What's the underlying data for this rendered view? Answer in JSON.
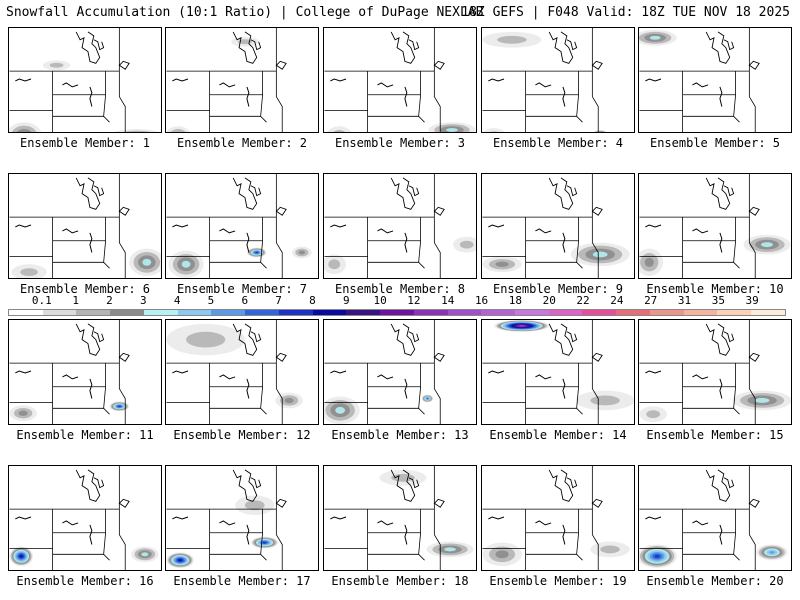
{
  "header": {
    "left": "Snowfall Accumulation (10:1 Ratio) | College of DuPage NEXLAB",
    "right": "18Z GEFS | F048 Valid: 18Z TUE NOV 18 2025"
  },
  "colorbar": {
    "labels": [
      "0.1",
      "1",
      "2",
      "3",
      "4",
      "5",
      "6",
      "7",
      "8",
      "9",
      "10",
      "12",
      "14",
      "16",
      "18",
      "20",
      "22",
      "24",
      "27",
      "31",
      "35",
      "39"
    ],
    "colors": [
      "#ffffff",
      "#dcdcdc",
      "#b4b4b4",
      "#8c8c8c",
      "#b4f0f5",
      "#8cc8f0",
      "#5a9be6",
      "#3264dc",
      "#1e32c8",
      "#0a0aa0",
      "#3c1482",
      "#6e14a0",
      "#8c32b4",
      "#a050c8",
      "#b464d2",
      "#c878dc",
      "#dc64c8",
      "#e6509b",
      "#e66e78",
      "#eb968c",
      "#f5b4a0",
      "#fad2b9",
      "#fcecd8"
    ]
  },
  "panels": [
    {
      "member": "1",
      "caption": "Ensemble Member: 1",
      "snow": [
        {
          "type": "blob",
          "x": 15,
          "y": 110,
          "rx": 18,
          "ry": 14,
          "level": 3
        },
        {
          "type": "blob",
          "x": 130,
          "y": 110,
          "rx": 28,
          "ry": 7,
          "level": 3
        },
        {
          "type": "blob",
          "x": 48,
          "y": 38,
          "rx": 14,
          "ry": 5,
          "level": 0
        }
      ]
    },
    {
      "member": "2",
      "caption": "Ensemble Member: 2",
      "snow": [
        {
          "type": "blob",
          "x": 12,
          "y": 112,
          "rx": 14,
          "ry": 12,
          "level": 3
        },
        {
          "type": "blob",
          "x": 80,
          "y": 14,
          "rx": 14,
          "ry": 5,
          "level": 0
        }
      ]
    },
    {
      "member": "3",
      "caption": "Ensemble Member: 3",
      "snow": [
        {
          "type": "blob",
          "x": 130,
          "y": 104,
          "rx": 24,
          "ry": 8,
          "level": 3
        },
        {
          "type": "blob",
          "x": 15,
          "y": 112,
          "rx": 14,
          "ry": 12,
          "level": 2
        }
      ]
    },
    {
      "member": "4",
      "caption": "Ensemble Member: 4",
      "snow": [
        {
          "type": "blob",
          "x": 30,
          "y": 12,
          "rx": 30,
          "ry": 8,
          "level": 0
        },
        {
          "type": "blob",
          "x": 120,
          "y": 108,
          "rx": 8,
          "ry": 4,
          "level": 6
        },
        {
          "type": "blob",
          "x": 12,
          "y": 112,
          "rx": 14,
          "ry": 10,
          "level": 2
        }
      ]
    },
    {
      "member": "5",
      "caption": "Ensemble Member: 5",
      "snow": [
        {
          "type": "blob",
          "x": 16,
          "y": 10,
          "rx": 22,
          "ry": 8,
          "level": 3
        },
        {
          "type": "blob",
          "x": 14,
          "y": 115,
          "rx": 14,
          "ry": 8,
          "level": 1
        }
      ]
    },
    {
      "member": "6",
      "caption": "Ensemble Member: 6",
      "snow": [
        {
          "type": "blob",
          "x": 140,
          "y": 90,
          "rx": 18,
          "ry": 14,
          "level": 3
        },
        {
          "type": "blob",
          "x": 20,
          "y": 100,
          "rx": 18,
          "ry": 8,
          "level": 1
        }
      ]
    },
    {
      "member": "7",
      "caption": "Ensemble Member: 7",
      "snow": [
        {
          "type": "blob",
          "x": 92,
          "y": 80,
          "rx": 10,
          "ry": 5,
          "level": 7
        },
        {
          "type": "blob",
          "x": 20,
          "y": 92,
          "rx": 18,
          "ry": 14,
          "level": 3
        },
        {
          "type": "blob",
          "x": 138,
          "y": 80,
          "rx": 10,
          "ry": 6,
          "level": 2
        }
      ]
    },
    {
      "member": "8",
      "caption": "Ensemble Member: 8",
      "snow": [
        {
          "type": "blob",
          "x": 145,
          "y": 72,
          "rx": 14,
          "ry": 8,
          "level": 1
        },
        {
          "type": "blob",
          "x": 10,
          "y": 92,
          "rx": 12,
          "ry": 10,
          "level": 1
        }
      ]
    },
    {
      "member": "9",
      "caption": "Ensemble Member: 9",
      "snow": [
        {
          "type": "blob",
          "x": 120,
          "y": 82,
          "rx": 30,
          "ry": 12,
          "level": 3
        },
        {
          "type": "blob",
          "x": 20,
          "y": 92,
          "rx": 20,
          "ry": 8,
          "level": 2
        }
      ]
    },
    {
      "member": "10",
      "caption": "Ensemble Member: 10",
      "snow": [
        {
          "type": "blob",
          "x": 130,
          "y": 72,
          "rx": 24,
          "ry": 10,
          "level": 3
        },
        {
          "type": "blob",
          "x": 10,
          "y": 90,
          "rx": 14,
          "ry": 14,
          "level": 2
        }
      ]
    },
    {
      "member": "11",
      "caption": "Ensemble Member: 11",
      "snow": [
        {
          "type": "blob",
          "x": 112,
          "y": 88,
          "rx": 10,
          "ry": 5,
          "level": 7
        },
        {
          "type": "blob",
          "x": 14,
          "y": 95,
          "rx": 14,
          "ry": 8,
          "level": 2
        }
      ]
    },
    {
      "member": "12",
      "caption": "Ensemble Member: 12",
      "snow": [
        {
          "type": "blob",
          "x": 125,
          "y": 82,
          "rx": 14,
          "ry": 8,
          "level": 2
        },
        {
          "type": "blob",
          "x": 40,
          "y": 20,
          "rx": 40,
          "ry": 16,
          "level": 0
        }
      ]
    },
    {
      "member": "13",
      "caption": "Ensemble Member: 13",
      "snow": [
        {
          "type": "blob",
          "x": 105,
          "y": 80,
          "rx": 6,
          "ry": 4,
          "level": 6
        },
        {
          "type": "blob",
          "x": 16,
          "y": 92,
          "rx": 20,
          "ry": 14,
          "level": 3
        }
      ]
    },
    {
      "member": "14",
      "caption": "Ensemble Member: 14",
      "snow": [
        {
          "type": "blob",
          "x": 40,
          "y": 6,
          "rx": 28,
          "ry": 6,
          "level": 12
        },
        {
          "type": "blob",
          "x": 125,
          "y": 82,
          "rx": 30,
          "ry": 10,
          "level": 1
        }
      ]
    },
    {
      "member": "15",
      "caption": "Ensemble Member: 15",
      "snow": [
        {
          "type": "blob",
          "x": 125,
          "y": 82,
          "rx": 30,
          "ry": 10,
          "level": 3
        },
        {
          "type": "blob",
          "x": 14,
          "y": 96,
          "rx": 14,
          "ry": 8,
          "level": 1
        }
      ]
    },
    {
      "member": "16",
      "caption": "Ensemble Member: 16",
      "snow": [
        {
          "type": "blob",
          "x": 138,
          "y": 90,
          "rx": 14,
          "ry": 8,
          "level": 3
        },
        {
          "type": "blob",
          "x": 12,
          "y": 92,
          "rx": 12,
          "ry": 10,
          "level": 8
        }
      ]
    },
    {
      "member": "17",
      "caption": "Ensemble Member: 17",
      "snow": [
        {
          "type": "blob",
          "x": 100,
          "y": 78,
          "rx": 14,
          "ry": 6,
          "level": 7
        },
        {
          "type": "blob",
          "x": 14,
          "y": 96,
          "rx": 14,
          "ry": 8,
          "level": 8
        },
        {
          "type": "blob",
          "x": 90,
          "y": 40,
          "rx": 20,
          "ry": 10,
          "level": 0
        }
      ]
    },
    {
      "member": "18",
      "caption": "Ensemble Member: 18",
      "snow": [
        {
          "type": "blob",
          "x": 128,
          "y": 85,
          "rx": 24,
          "ry": 8,
          "level": 3
        },
        {
          "type": "blob",
          "x": 80,
          "y": 12,
          "rx": 24,
          "ry": 8,
          "level": 0
        }
      ]
    },
    {
      "member": "19",
      "caption": "Ensemble Member: 19",
      "snow": [
        {
          "type": "blob",
          "x": 20,
          "y": 90,
          "rx": 20,
          "ry": 12,
          "level": 2
        },
        {
          "type": "blob",
          "x": 130,
          "y": 85,
          "rx": 20,
          "ry": 8,
          "level": 1
        }
      ]
    },
    {
      "member": "20",
      "caption": "Ensemble Member: 20",
      "snow": [
        {
          "type": "blob",
          "x": 18,
          "y": 92,
          "rx": 20,
          "ry": 12,
          "level": 7
        },
        {
          "type": "blob",
          "x": 135,
          "y": 88,
          "rx": 16,
          "ry": 8,
          "level": 5
        }
      ]
    }
  ]
}
